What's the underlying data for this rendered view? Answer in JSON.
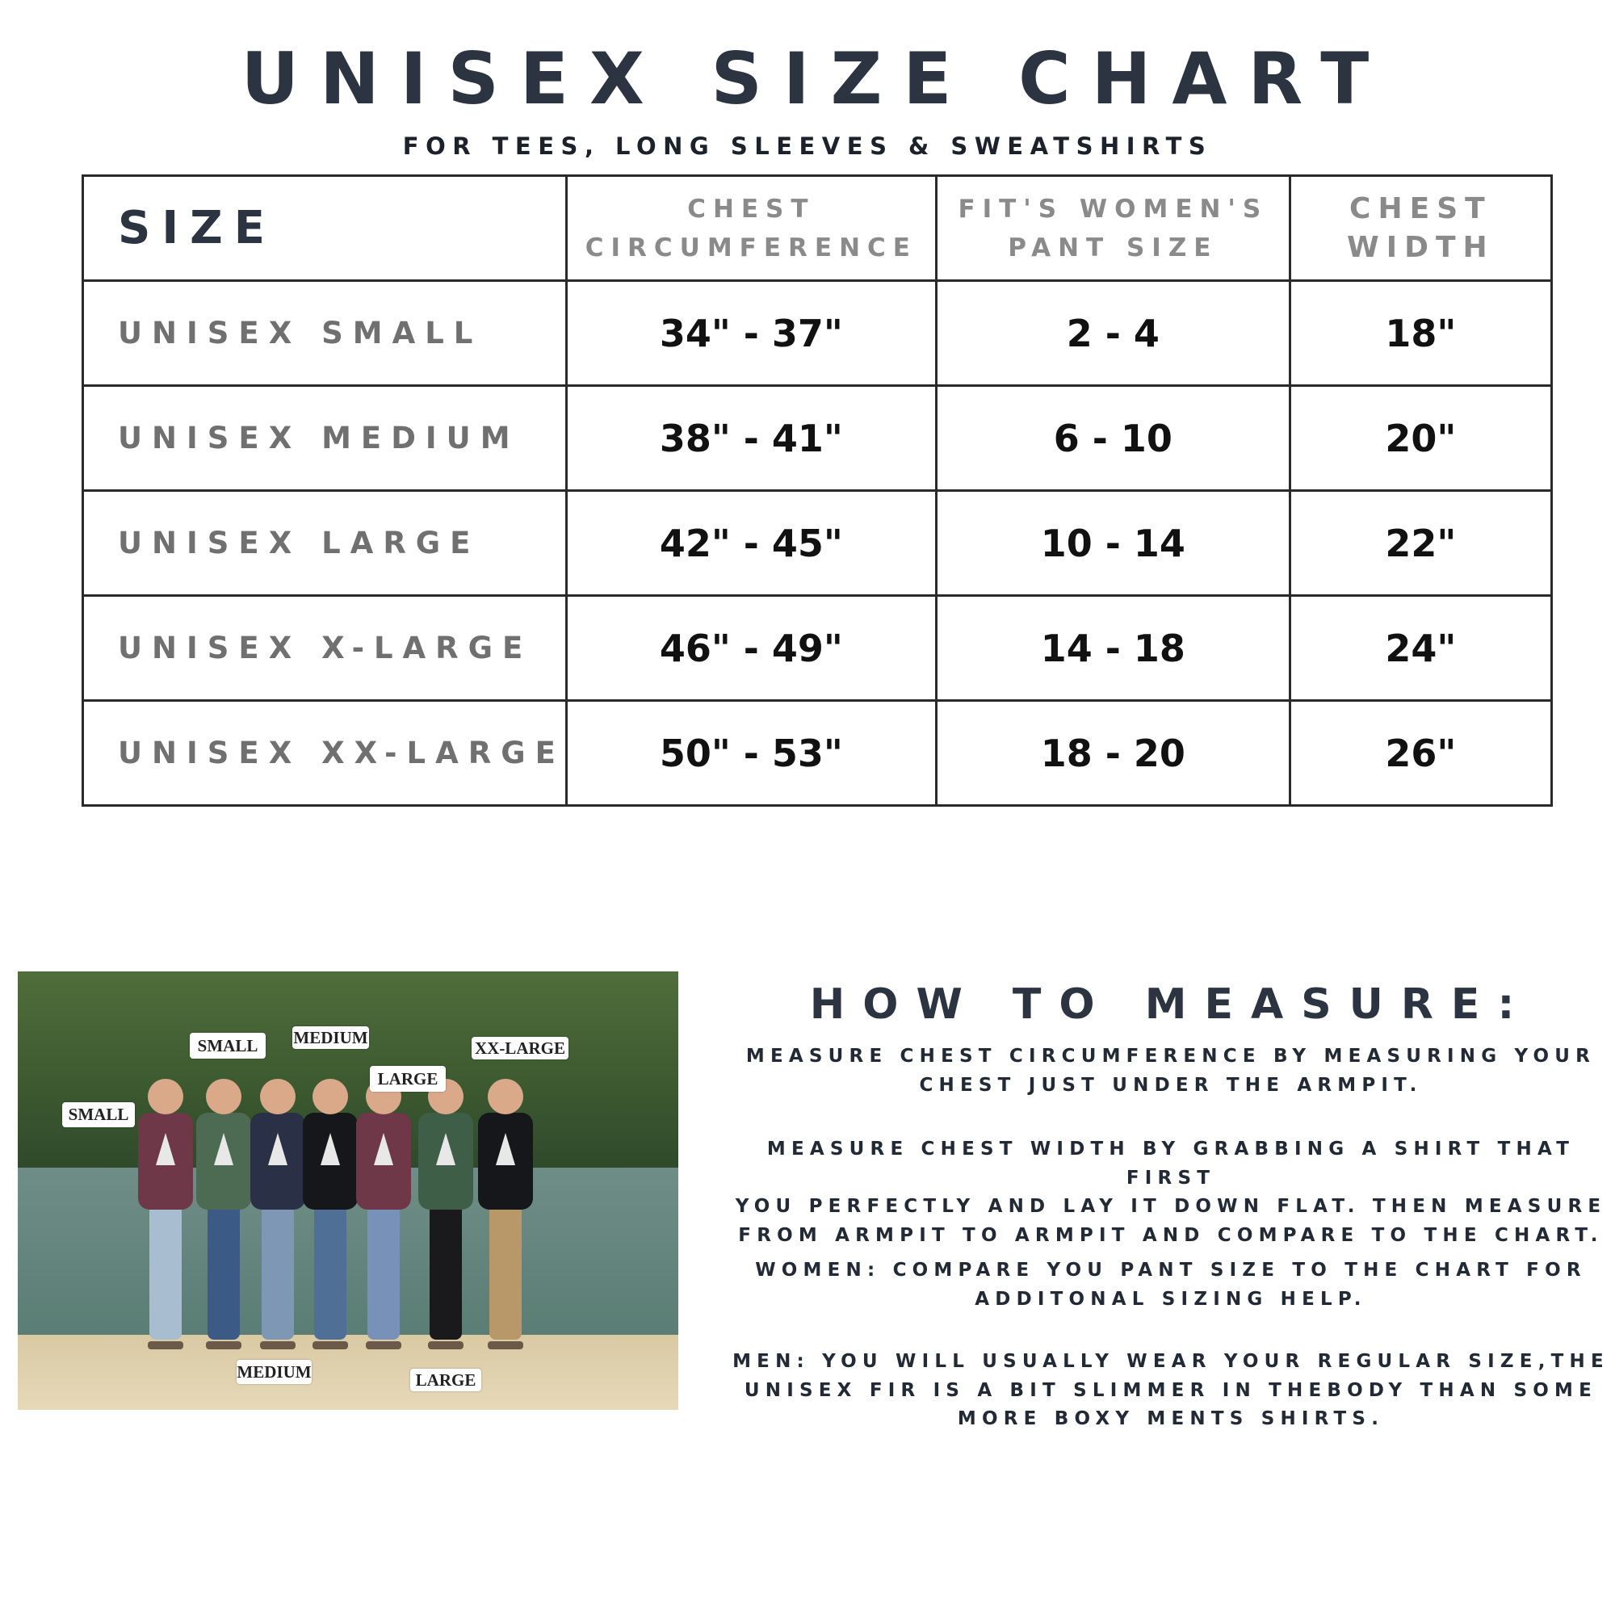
{
  "header": {
    "title": "UNISEX SIZE CHART",
    "subtitle": "FOR TEES, LONG SLEEVES & SWEATSHIRTS"
  },
  "table": {
    "headers": {
      "size": "SIZE",
      "chest_circumference": [
        "CHEST",
        "CIRCUMFERENCE"
      ],
      "pant_size": [
        "FIT'S WOMEN'S",
        "PANT SIZE"
      ],
      "chest_width": [
        "CHEST",
        "WIDTH"
      ]
    },
    "rows": [
      {
        "size": "UNISEX SMALL",
        "chest": "34\" - 37\"",
        "pant": "2 - 4",
        "width": "18\""
      },
      {
        "size": "UNISEX MEDIUM",
        "chest": "38\" - 41\"",
        "pant": "6 - 10",
        "width": "20\""
      },
      {
        "size": "UNISEX LARGE",
        "chest": "42\" - 45\"",
        "pant": "10 - 14",
        "width": "22\""
      },
      {
        "size": "UNISEX X-LARGE",
        "chest": "46\" - 49\"",
        "pant": "14 - 18",
        "width": "24\""
      },
      {
        "size": "UNISEX XX-LARGE",
        "chest": "50\" - 53\"",
        "pant": "18 - 20",
        "width": "26\""
      }
    ]
  },
  "photo": {
    "labels": [
      "SMALL",
      "SMALL",
      "MEDIUM",
      "LARGE",
      "XX-LARGE",
      "MEDIUM",
      "LARGE"
    ],
    "shirt_colors": [
      "#6e3848",
      "#4d6a52",
      "#2a3146",
      "#15171b",
      "#6e3848",
      "#3f5e48",
      "#15171b"
    ]
  },
  "how_to": {
    "title": "HOW TO MEASURE:",
    "paragraphs": [
      [
        "MEASURE CHEST CIRCUMFERENCE BY MEASURING YOUR",
        "CHEST JUST UNDER THE ARMPIT."
      ],
      [
        "MEASURE CHEST WIDTH BY GRABBING A SHIRT THAT FIRST",
        "YOU PERFECTLY AND LAY IT DOWN FLAT. THEN MEASURE",
        "FROM ARMPIT TO ARMPIT AND COMPARE TO THE CHART."
      ],
      [
        "WOMEN: COMPARE YOU PANT SIZE TO THE CHART FOR",
        "ADDITONAL SIZING HELP."
      ],
      [
        "MEN: YOU WILL USUALLY WEAR YOUR REGULAR SIZE,THE",
        "UNISEX FIR IS A BIT SLIMMER IN THEBODY THAN SOME",
        "MORE BOXY MENTS SHIRTS."
      ]
    ]
  }
}
